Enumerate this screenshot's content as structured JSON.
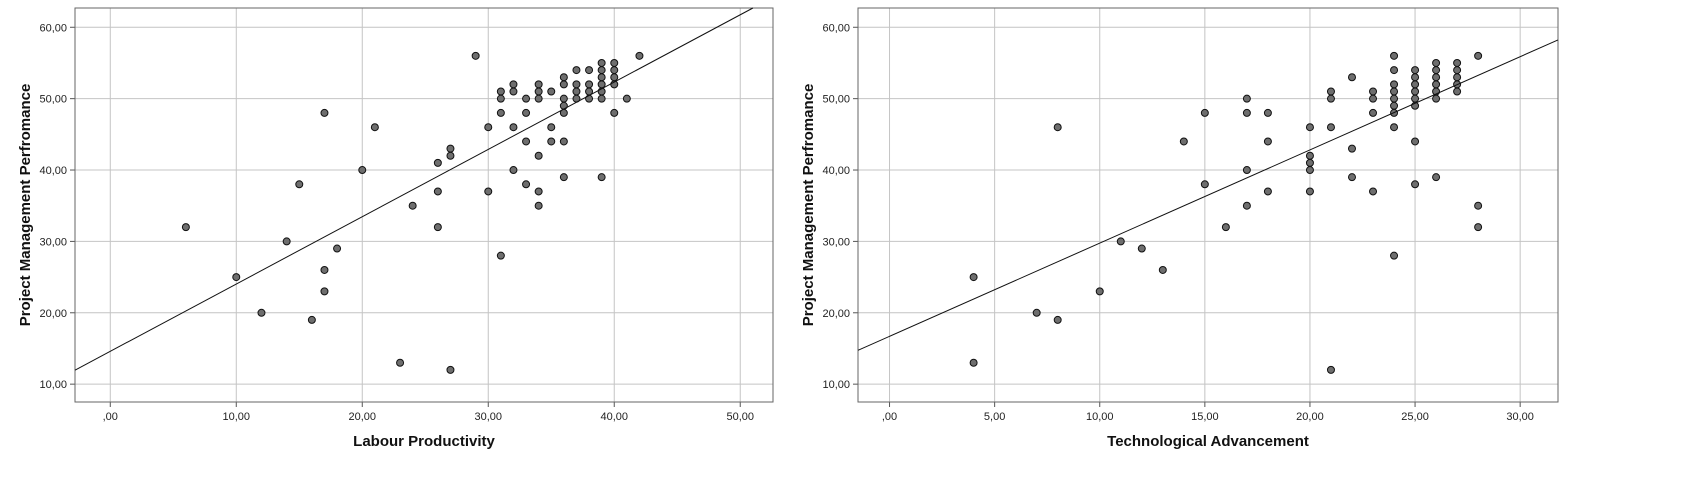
{
  "chart_data": [
    {
      "type": "scatter",
      "xlabel": "Labour Productivity",
      "ylabel": "Project Management Perfromance",
      "xlim": [
        -2.8,
        52.6
      ],
      "ylim": [
        7.5,
        62.7
      ],
      "xticks": [
        0,
        10,
        20,
        30,
        40,
        50
      ],
      "xtick_labels": [
        ",00",
        "10,00",
        "20,00",
        "30,00",
        "40,00",
        "50,00"
      ],
      "yticks": [
        10,
        20,
        30,
        40,
        50,
        60
      ],
      "ytick_labels": [
        "10,00",
        "20,00",
        "30,00",
        "40,00",
        "50,00",
        "60,00"
      ],
      "grid": true,
      "marker_color": "#6e6e6e",
      "fit_line": {
        "intercept": 14.6,
        "slope": 0.943
      },
      "points": [
        [
          6,
          32
        ],
        [
          10,
          25
        ],
        [
          12,
          20
        ],
        [
          14,
          30
        ],
        [
          15,
          38
        ],
        [
          16,
          19
        ],
        [
          17,
          48
        ],
        [
          17,
          26
        ],
        [
          17,
          23
        ],
        [
          18,
          29
        ],
        [
          20,
          40
        ],
        [
          21,
          46
        ],
        [
          23,
          13
        ],
        [
          24,
          35
        ],
        [
          26,
          41
        ],
        [
          26,
          37
        ],
        [
          26,
          32
        ],
        [
          27,
          43
        ],
        [
          27,
          42
        ],
        [
          27,
          12
        ],
        [
          29,
          56
        ],
        [
          30,
          46
        ],
        [
          30,
          37
        ],
        [
          31,
          51
        ],
        [
          31,
          50
        ],
        [
          31,
          48
        ],
        [
          31,
          28
        ],
        [
          32,
          52
        ],
        [
          32,
          51
        ],
        [
          32,
          46
        ],
        [
          32,
          40
        ],
        [
          33,
          50
        ],
        [
          33,
          48
        ],
        [
          33,
          44
        ],
        [
          33,
          38
        ],
        [
          34,
          52
        ],
        [
          34,
          51
        ],
        [
          34,
          50
        ],
        [
          34,
          42
        ],
        [
          34,
          37
        ],
        [
          34,
          35
        ],
        [
          35,
          51
        ],
        [
          35,
          46
        ],
        [
          35,
          44
        ],
        [
          36,
          53
        ],
        [
          36,
          52
        ],
        [
          36,
          50
        ],
        [
          36,
          49
        ],
        [
          36,
          48
        ],
        [
          36,
          44
        ],
        [
          36,
          39
        ],
        [
          37,
          54
        ],
        [
          37,
          52
        ],
        [
          37,
          51
        ],
        [
          37,
          50
        ],
        [
          38,
          54
        ],
        [
          38,
          52
        ],
        [
          38,
          51
        ],
        [
          38,
          50
        ],
        [
          39,
          55
        ],
        [
          39,
          54
        ],
        [
          39,
          53
        ],
        [
          39,
          52
        ],
        [
          39,
          51
        ],
        [
          39,
          50
        ],
        [
          39,
          39
        ],
        [
          40,
          55
        ],
        [
          40,
          54
        ],
        [
          40,
          53
        ],
        [
          40,
          52
        ],
        [
          40,
          48
        ],
        [
          41,
          50
        ],
        [
          42,
          56
        ]
      ]
    },
    {
      "type": "scatter",
      "xlabel": "Technological Advancement",
      "ylabel": "Project Management Perfromance",
      "xlim": [
        -1.5,
        31.8
      ],
      "ylim": [
        7.5,
        62.7
      ],
      "xticks": [
        0,
        5,
        10,
        15,
        20,
        25,
        30
      ],
      "xtick_labels": [
        ",00",
        "5,00",
        "10,00",
        "15,00",
        "20,00",
        "25,00",
        "30,00"
      ],
      "yticks": [
        10,
        20,
        30,
        40,
        50,
        60
      ],
      "ytick_labels": [
        "10,00",
        "20,00",
        "30,00",
        "40,00",
        "50,00",
        "60,00"
      ],
      "grid": true,
      "marker_color": "#6e6e6e",
      "fit_line": {
        "intercept": 16.7,
        "slope": 1.306
      },
      "points": [
        [
          4,
          25
        ],
        [
          4,
          13
        ],
        [
          7,
          20
        ],
        [
          8,
          46
        ],
        [
          8,
          19
        ],
        [
          10,
          23
        ],
        [
          11,
          30
        ],
        [
          12,
          29
        ],
        [
          13,
          26
        ],
        [
          14,
          44
        ],
        [
          15,
          48
        ],
        [
          15,
          38
        ],
        [
          16,
          32
        ],
        [
          17,
          50
        ],
        [
          17,
          48
        ],
        [
          17,
          40
        ],
        [
          17,
          35
        ],
        [
          18,
          48
        ],
        [
          18,
          44
        ],
        [
          18,
          37
        ],
        [
          20,
          46
        ],
        [
          20,
          42
        ],
        [
          20,
          41
        ],
        [
          20,
          40
        ],
        [
          20,
          37
        ],
        [
          21,
          51
        ],
        [
          21,
          50
        ],
        [
          21,
          46
        ],
        [
          21,
          12
        ],
        [
          22,
          53
        ],
        [
          22,
          43
        ],
        [
          22,
          39
        ],
        [
          23,
          51
        ],
        [
          23,
          50
        ],
        [
          23,
          48
        ],
        [
          23,
          37
        ],
        [
          24,
          56
        ],
        [
          24,
          54
        ],
        [
          24,
          52
        ],
        [
          24,
          51
        ],
        [
          24,
          50
        ],
        [
          24,
          49
        ],
        [
          24,
          48
        ],
        [
          24,
          46
        ],
        [
          24,
          28
        ],
        [
          25,
          54
        ],
        [
          25,
          53
        ],
        [
          25,
          52
        ],
        [
          25,
          51
        ],
        [
          25,
          50
        ],
        [
          25,
          49
        ],
        [
          25,
          44
        ],
        [
          25,
          38
        ],
        [
          26,
          55
        ],
        [
          26,
          54
        ],
        [
          26,
          53
        ],
        [
          26,
          52
        ],
        [
          26,
          51
        ],
        [
          26,
          50
        ],
        [
          26,
          39
        ],
        [
          27,
          55
        ],
        [
          27,
          54
        ],
        [
          27,
          53
        ],
        [
          27,
          52
        ],
        [
          27,
          51
        ],
        [
          28,
          56
        ],
        [
          28,
          35
        ],
        [
          28,
          32
        ]
      ]
    }
  ]
}
